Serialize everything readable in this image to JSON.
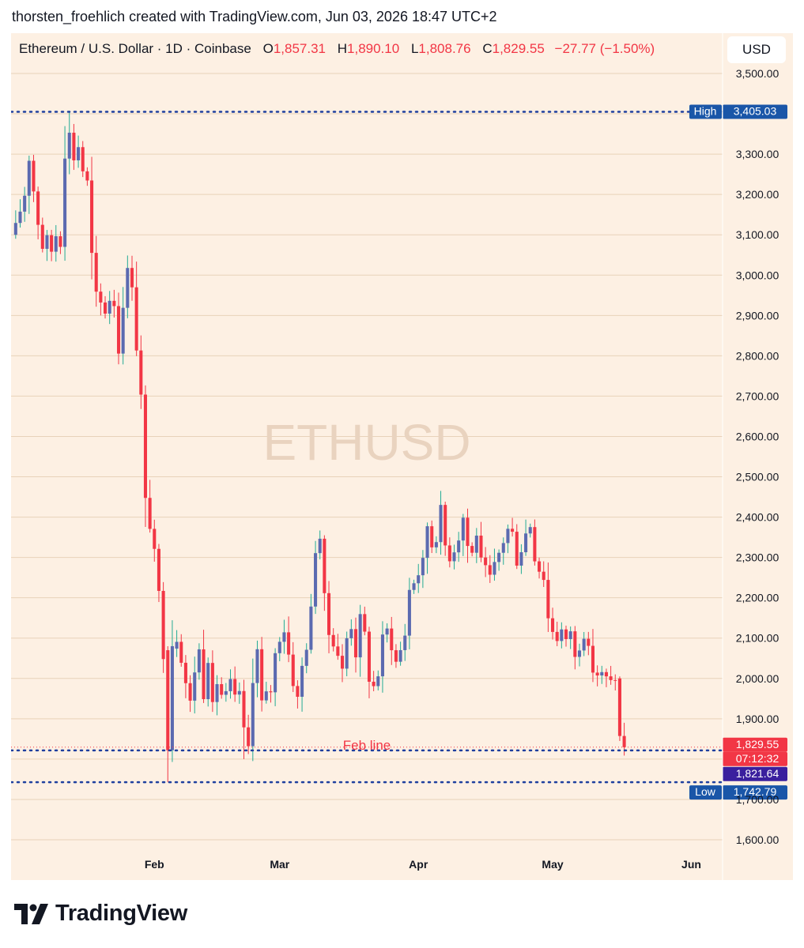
{
  "caption": "thorsten_froehlich created with TradingView.com, Jun 03, 2026 18:47 UTC+2",
  "symbol": {
    "title": "Ethereum / U.S. Dollar · 1D · Coinbase",
    "o_label": "O",
    "o_value": "1,857.31",
    "h_label": "H",
    "h_value": "1,890.10",
    "l_label": "L",
    "l_value": "1,808.76",
    "c_label": "C",
    "c_value": "1,829.55",
    "change": "−27.77 (−1.50%)"
  },
  "currency": "USD",
  "watermark": "ETHUSD",
  "brand": "TradingView",
  "colors": {
    "up": "#5b6ab0",
    "down": "#f23645",
    "wick_up": "#22ab94",
    "grid": "#e8d2b9",
    "background": "#fdf0e3",
    "dotted": "#1e3f9e",
    "label_blue": "#1a56a8",
    "label_purple": "#3a1f9e"
  },
  "chart_data": {
    "type": "candlestick",
    "ylim": [
      1560,
      3600
    ],
    "y_ticks": [
      "1,600.00",
      "1,700.00",
      "1,900.00",
      "2,000.00",
      "2,100.00",
      "2,200.00",
      "2,300.00",
      "2,400.00",
      "2,500.00",
      "2,600.00",
      "2,700.00",
      "2,800.00",
      "2,900.00",
      "3,000.00",
      "3,100.00",
      "3,200.00",
      "3,300.00",
      "3,500.00"
    ],
    "y_tick_values": [
      1600,
      1700,
      1900,
      2000,
      2100,
      2200,
      2300,
      2400,
      2500,
      2600,
      2700,
      2800,
      2900,
      3000,
      3100,
      3200,
      3300,
      3500
    ],
    "x_ticks": [
      {
        "label": "Feb",
        "index": 31
      },
      {
        "label": "Mar",
        "index": 59
      },
      {
        "label": "Apr",
        "index": 90
      },
      {
        "label": "May",
        "index": 120
      },
      {
        "label": "Jun",
        "index": 151
      }
    ],
    "first_index": 0,
    "last_index": 153,
    "index_range": [
      0,
      167
    ],
    "high_line": {
      "label": "High",
      "value": 3405.03,
      "value_text": "3,405.03"
    },
    "low_line": {
      "label": "Low",
      "value": 1742.79,
      "value_text": "1,742.79"
    },
    "feb_line": {
      "label": "Feb line",
      "value": 1821.64,
      "value_text": "1,821.64"
    },
    "last_price": {
      "value": 1829.55,
      "value_text": "1,829.55",
      "countdown": "07:12:32"
    },
    "anchors": [
      [
        0,
        3120
      ],
      [
        2,
        3200
      ],
      [
        3,
        3290
      ],
      [
        4,
        3210
      ],
      [
        5,
        3130
      ],
      [
        6,
        3070
      ],
      [
        7,
        3090
      ],
      [
        8,
        3060
      ],
      [
        9,
        3100
      ],
      [
        10,
        3080
      ],
      [
        11,
        3300
      ],
      [
        12,
        3350
      ],
      [
        13,
        3290
      ],
      [
        14,
        3320
      ],
      [
        15,
        3260
      ],
      [
        16,
        3230
      ],
      [
        17,
        3050
      ],
      [
        18,
        2950
      ],
      [
        19,
        2930
      ],
      [
        20,
        2910
      ],
      [
        21,
        2940
      ],
      [
        22,
        2930
      ],
      [
        23,
        2810
      ],
      [
        24,
        2930
      ],
      [
        25,
        3010
      ],
      [
        26,
        2980
      ],
      [
        27,
        2820
      ],
      [
        28,
        2700
      ],
      [
        29,
        2440
      ],
      [
        30,
        2380
      ],
      [
        31,
        2310
      ],
      [
        32,
        2210
      ],
      [
        33,
        2060
      ],
      [
        34,
        1820
      ],
      [
        35,
        2080
      ],
      [
        36,
        2100
      ],
      [
        37,
        2050
      ],
      [
        38,
        1990
      ],
      [
        39,
        1940
      ],
      [
        40,
        2020
      ],
      [
        41,
        2070
      ],
      [
        42,
        1960
      ],
      [
        43,
        2050
      ],
      [
        44,
        1930
      ],
      [
        45,
        1990
      ],
      [
        46,
        1960
      ],
      [
        47,
        1960
      ],
      [
        48,
        1990
      ],
      [
        49,
        1950
      ],
      [
        50,
        1970
      ],
      [
        51,
        1870
      ],
      [
        52,
        1830
      ],
      [
        53,
        2000
      ],
      [
        54,
        2070
      ],
      [
        55,
        1940
      ],
      [
        56,
        1960
      ],
      [
        57,
        1970
      ],
      [
        58,
        2060
      ],
      [
        59,
        2100
      ],
      [
        60,
        2120
      ],
      [
        61,
        2060
      ],
      [
        62,
        1990
      ],
      [
        63,
        1950
      ],
      [
        64,
        2030
      ],
      [
        65,
        2080
      ],
      [
        66,
        2170
      ],
      [
        67,
        2320
      ],
      [
        68,
        2350
      ],
      [
        69,
        2200
      ],
      [
        70,
        2110
      ],
      [
        71,
        2090
      ],
      [
        72,
        2060
      ],
      [
        73,
        2020
      ],
      [
        74,
        2100
      ],
      [
        75,
        2130
      ],
      [
        76,
        2060
      ],
      [
        77,
        2150
      ],
      [
        78,
        2110
      ],
      [
        79,
        2000
      ],
      [
        80,
        1980
      ],
      [
        81,
        2010
      ],
      [
        82,
        2100
      ],
      [
        83,
        2120
      ],
      [
        84,
        2080
      ],
      [
        85,
        2040
      ],
      [
        86,
        2070
      ],
      [
        87,
        2110
      ],
      [
        88,
        2220
      ],
      [
        89,
        2240
      ],
      [
        90,
        2260
      ],
      [
        91,
        2290
      ],
      [
        92,
        2380
      ],
      [
        93,
        2330
      ],
      [
        94,
        2350
      ],
      [
        95,
        2420
      ],
      [
        96,
        2330
      ],
      [
        97,
        2300
      ],
      [
        98,
        2320
      ],
      [
        99,
        2350
      ],
      [
        100,
        2400
      ],
      [
        101,
        2330
      ],
      [
        102,
        2310
      ],
      [
        103,
        2360
      ],
      [
        104,
        2290
      ],
      [
        105,
        2270
      ],
      [
        106,
        2250
      ],
      [
        107,
        2280
      ],
      [
        108,
        2310
      ],
      [
        109,
        2340
      ],
      [
        110,
        2370
      ],
      [
        111,
        2360
      ],
      [
        112,
        2290
      ],
      [
        113,
        2320
      ],
      [
        114,
        2360
      ],
      [
        115,
        2380
      ],
      [
        116,
        2300
      ],
      [
        117,
        2270
      ],
      [
        118,
        2250
      ],
      [
        119,
        2150
      ],
      [
        120,
        2120
      ],
      [
        121,
        2100
      ],
      [
        122,
        2120
      ],
      [
        123,
        2090
      ],
      [
        124,
        2120
      ],
      [
        125,
        2050
      ],
      [
        126,
        2080
      ],
      [
        127,
        2110
      ],
      [
        128,
        2070
      ],
      [
        129,
        2020
      ],
      [
        130,
        2010
      ],
      [
        131,
        2010
      ],
      [
        132,
        2000
      ],
      [
        133,
        1990
      ],
      [
        134,
        2000
      ],
      [
        135,
        1830
      ],
      [
        136,
        1810
      ]
    ]
  }
}
